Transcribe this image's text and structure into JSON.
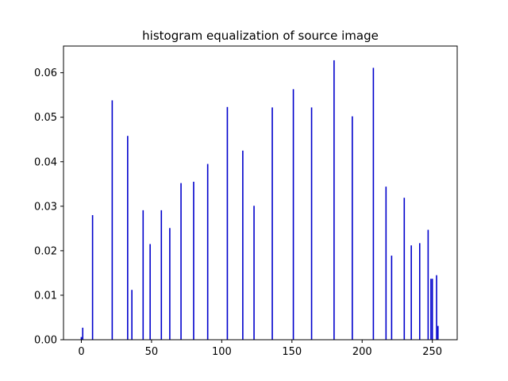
{
  "chart_data": {
    "type": "bar",
    "title": "histogram equalization of source image",
    "xlabel": "",
    "ylabel": "",
    "xlim": [
      -12.7,
      267.7
    ],
    "ylim": [
      0,
      0.066
    ],
    "xticks": [
      0,
      50,
      100,
      150,
      200,
      250
    ],
    "yticks": [
      0.0,
      0.01,
      0.02,
      0.03,
      0.04,
      0.05,
      0.06
    ],
    "ytick_labels": [
      "0.00",
      "0.01",
      "0.02",
      "0.03",
      "0.04",
      "0.05",
      "0.06"
    ],
    "grid": false,
    "bar_color": "#0000cc",
    "x": [
      0,
      1,
      8,
      22,
      33,
      36,
      44,
      49,
      57,
      63,
      71,
      80,
      90,
      104,
      115,
      123,
      136,
      151,
      164,
      180,
      193,
      208,
      217,
      221,
      230,
      235,
      241,
      247,
      249,
      250,
      253,
      254
    ],
    "values": [
      0.0006,
      0.0027,
      0.028,
      0.0538,
      0.0458,
      0.0112,
      0.0291,
      0.0215,
      0.0291,
      0.0251,
      0.0352,
      0.0355,
      0.0395,
      0.0523,
      0.0425,
      0.0301,
      0.0522,
      0.0563,
      0.0522,
      0.0628,
      0.0502,
      0.0611,
      0.0344,
      0.0189,
      0.0319,
      0.0212,
      0.0217,
      0.0247,
      0.0137,
      0.0137,
      0.0145,
      0.0031
    ]
  }
}
